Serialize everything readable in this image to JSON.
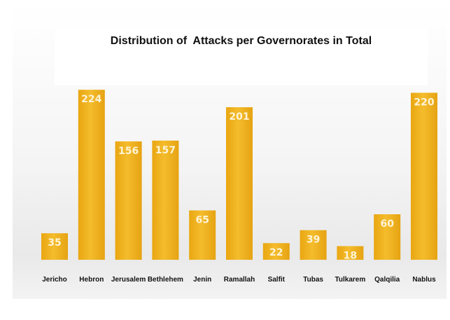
{
  "chart_data": {
    "type": "bar",
    "title": "Distribution of  Attacks per Governorates in Total",
    "xlabel": "",
    "ylabel": "",
    "categories": [
      "Jericho",
      "Hebron",
      "Jerusalem",
      "Bethlehem",
      "Jenin",
      "Ramallah",
      "Salfit",
      "Tubas",
      "Tulkarem",
      "Qalqilia",
      "Nablus"
    ],
    "values": [
      35,
      224,
      156,
      157,
      65,
      201,
      22,
      39,
      18,
      60,
      220
    ],
    "ylim": [
      0,
      250
    ],
    "grid": false,
    "legend": "none",
    "bar_color": "#f0b21e",
    "label_color": "#fff4d6"
  }
}
